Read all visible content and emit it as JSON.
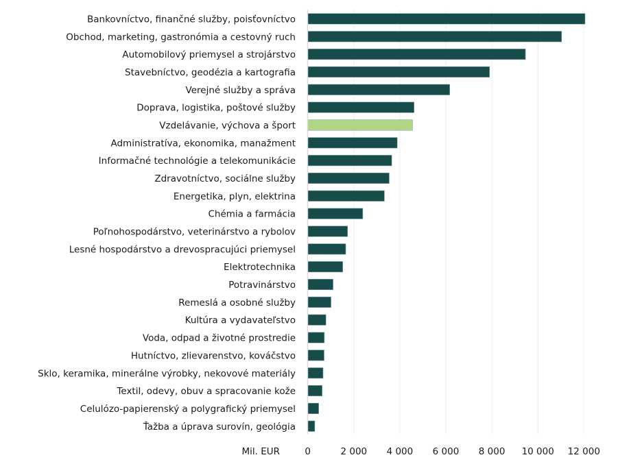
{
  "chart_data": {
    "type": "bar",
    "orientation": "horizontal",
    "xlabel": "Mil. EUR",
    "xlim": [
      0,
      12000
    ],
    "xticks": [
      0,
      2000,
      4000,
      6000,
      8000,
      10000,
      12000
    ],
    "xtick_labels": [
      "0",
      "2 000",
      "4 000",
      "6 000",
      "8 000",
      "10 000",
      "12 000"
    ],
    "grid": true,
    "colors": {
      "default": "#184c4b",
      "highlight": "#b0d685"
    },
    "highlight_category": "Vzdelávanie, výchova a šport",
    "categories": [
      "Bankovníctvo, finančné služby, poisťovníctvo",
      "Obchod, marketing, gastronómia a cestovný ruch",
      "Automobilový priemysel a strojárstvo",
      "Stavebníctvo, geodézia a kartografia",
      "Verejné služby a správa",
      "Doprava, logistika, poštové služby",
      "Vzdelávanie, výchova a šport",
      "Administratíva, ekonomika, manažment",
      "Informačné technológie a telekomunikácie",
      "Zdravotníctvo, sociálne služby",
      "Energetika, plyn, elektrina",
      "Chémia a farmácia",
      "Poľnohospodárstvo, veterinárstvo a rybolov",
      "Lesné hospodárstvo a drevospracujúci priemysel",
      "Elektrotechnika",
      "Potravinárstvo",
      "Remeslá a osobné služby",
      "Kultúra a vydavateľstvo",
      "Voda, odpad a životné prostredie",
      "Hutníctvo, zlievarenstvo, kováčstvo",
      "Sklo, keramika, minerálne výrobky, nekovové materiály",
      "Textil, odevy, obuv a spracovanie kože",
      "Celulózo-papierenský a polygrafický priemysel",
      "Ťažba a úprava surovín, geológia"
    ],
    "values": [
      12050,
      11030,
      9460,
      7900,
      6170,
      4620,
      4550,
      3890,
      3650,
      3540,
      3330,
      2390,
      1730,
      1650,
      1520,
      1100,
      1010,
      790,
      720,
      710,
      665,
      625,
      475,
      305
    ]
  }
}
